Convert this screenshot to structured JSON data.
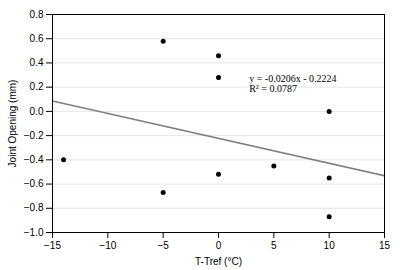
{
  "chart_data": {
    "type": "scatter",
    "xlabel": "T-Tref (°C)",
    "ylabel": "Joint Opening (mm)",
    "series": [
      {
        "type": "scatter",
        "color": "#000000",
        "marker": "circle",
        "x": [
          -14,
          -5,
          -5,
          0,
          0,
          0,
          5,
          10,
          10,
          10
        ],
        "values": [
          -0.4,
          0.58,
          -0.67,
          0.46,
          0.28,
          -0.52,
          -0.45,
          -0.55,
          -0.87,
          0.0
        ]
      },
      {
        "type": "line",
        "color": "#808080",
        "line_style": "solid",
        "x": [
          -15,
          15
        ],
        "values": [
          0.0866,
          -0.5314
        ]
      }
    ],
    "annotations": [
      {
        "text": "y = -0.0206x - 0.2224\nR² = 0.0787",
        "x": 2.5,
        "y": 0.33
      }
    ],
    "xlim": [
      -15,
      15
    ],
    "ylim": [
      -1.0,
      0.8
    ],
    "xticks": [
      -15,
      -10,
      -5,
      0,
      5,
      10,
      15
    ],
    "yticks": [
      -1.0,
      -0.8,
      -0.6,
      -0.4,
      -0.2,
      0.0,
      0.2,
      0.4,
      0.6,
      0.8
    ],
    "grid": "y"
  }
}
